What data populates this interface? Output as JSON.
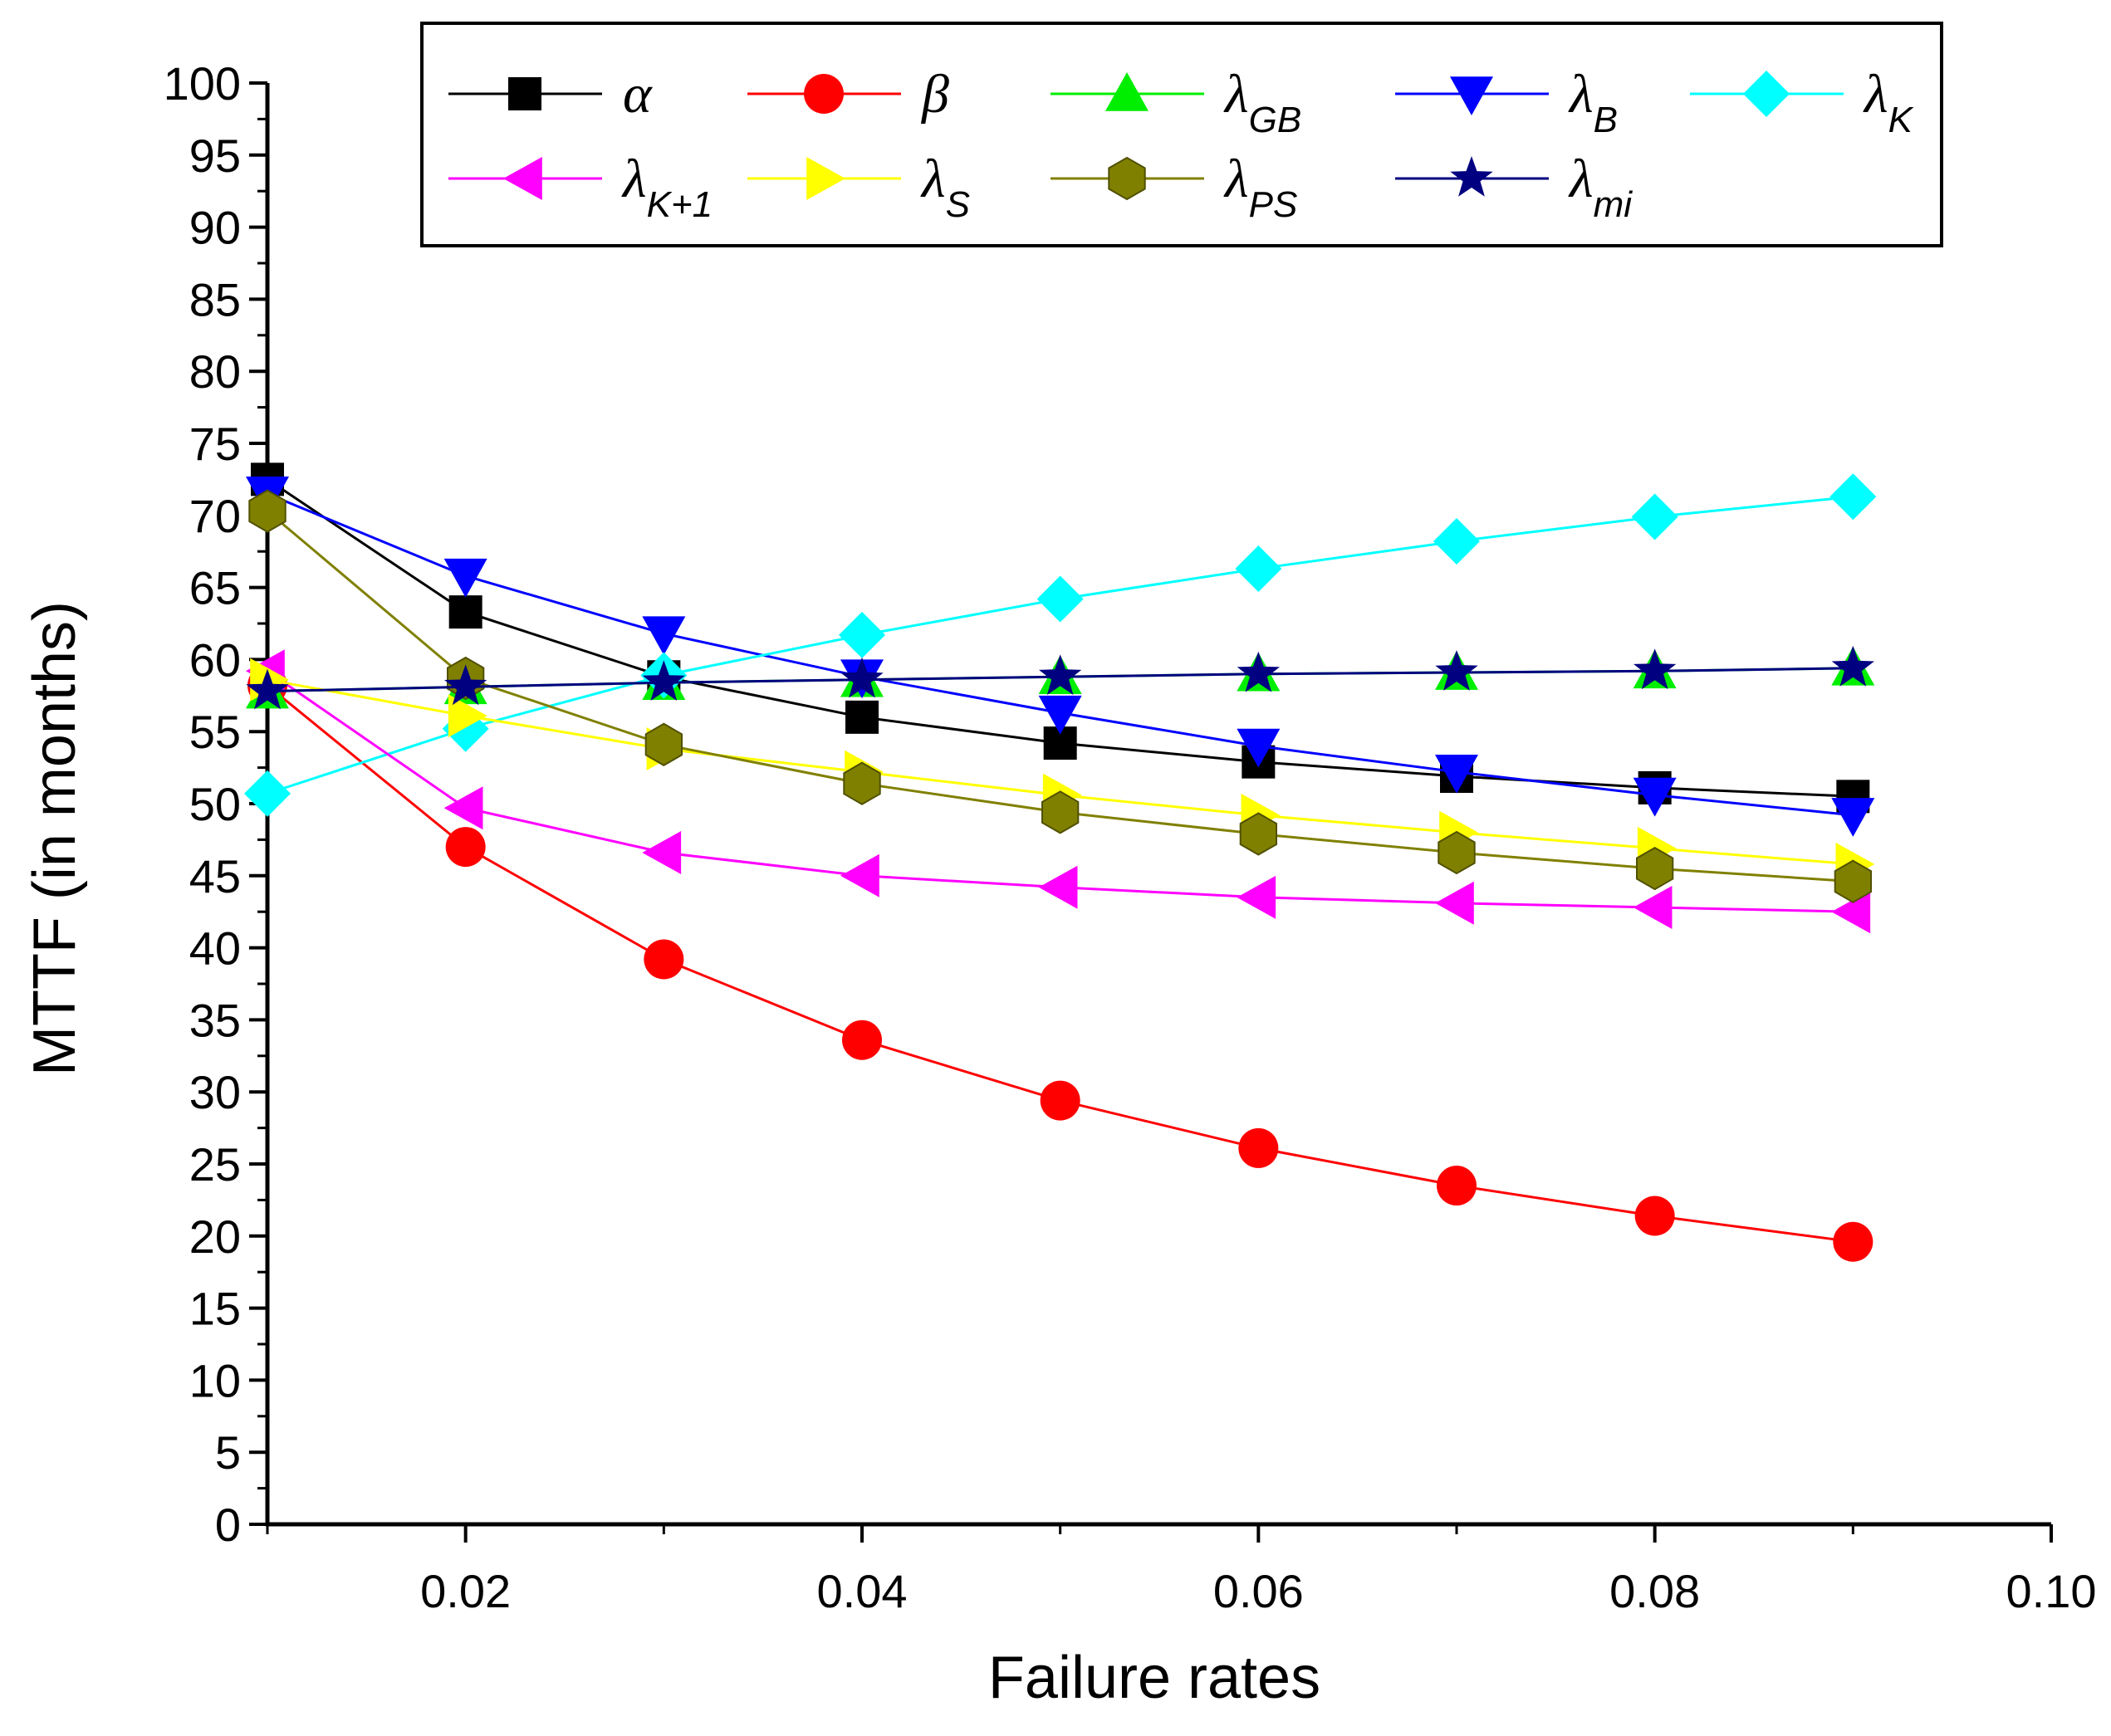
{
  "chart_data": {
    "type": "line",
    "title": "",
    "xlabel": "Failure rates",
    "ylabel": "MTTF (in months)",
    "xlim": [
      0.01,
      0.1
    ],
    "ylim": [
      0,
      100
    ],
    "x": [
      0.01,
      0.02,
      0.03,
      0.04,
      0.05,
      0.06,
      0.07,
      0.08,
      0.09
    ],
    "x_ticks": [
      "0.02",
      "0.04",
      "0.06",
      "0.08",
      "0.10"
    ],
    "y_ticks": [
      "0",
      "5",
      "10",
      "15",
      "20",
      "25",
      "30",
      "35",
      "40",
      "45",
      "50",
      "55",
      "60",
      "65",
      "70",
      "75",
      "80",
      "85",
      "90",
      "95",
      "100"
    ],
    "grid": false,
    "legend_position": "top",
    "series": [
      {
        "name": "α",
        "symbol": "α",
        "sub": "",
        "color": "#000000",
        "marker": "square",
        "values": [
          72.5,
          63.3,
          58.8,
          56.0,
          54.2,
          52.9,
          51.9,
          51.1,
          50.5
        ]
      },
      {
        "name": "β",
        "symbol": "β",
        "sub": "",
        "color": "#ff0000",
        "marker": "circle",
        "values": [
          58.2,
          47.0,
          39.2,
          33.6,
          29.4,
          26.1,
          23.5,
          21.4,
          19.6
        ]
      },
      {
        "name": "λGB",
        "symbol": "λ",
        "sub": "GB",
        "color": "#00ee00",
        "marker": "triangle-up",
        "values": [
          57.8,
          58.1,
          58.4,
          58.6,
          58.8,
          59.0,
          59.1,
          59.2,
          59.4
        ]
      },
      {
        "name": "λB",
        "symbol": "λ",
        "sub": "B",
        "color": "#0000ff",
        "marker": "triangle-down",
        "values": [
          71.5,
          65.8,
          61.8,
          58.8,
          56.3,
          54.0,
          52.2,
          50.6,
          49.2
        ]
      },
      {
        "name": "λK",
        "symbol": "λ",
        "sub": "K",
        "color": "#00ffff",
        "marker": "diamond",
        "values": [
          50.7,
          55.2,
          58.9,
          61.7,
          64.2,
          66.3,
          68.2,
          69.9,
          71.3
        ]
      },
      {
        "name": "λK+1",
        "symbol": "λ",
        "sub": "K+1",
        "color": "#ff00ff",
        "marker": "triangle-left",
        "values": [
          59.2,
          49.7,
          46.6,
          45.0,
          44.2,
          43.5,
          43.1,
          42.8,
          42.5
        ]
      },
      {
        "name": "λS",
        "symbol": "λ",
        "sub": "S",
        "color": "#ffff00",
        "marker": "triangle-right",
        "values": [
          58.6,
          56.1,
          53.8,
          52.2,
          50.6,
          49.2,
          48.0,
          46.9,
          45.8
        ]
      },
      {
        "name": "λPS",
        "symbol": "λ",
        "sub": "PS",
        "color": "#808000",
        "marker": "hexagon",
        "values": [
          70.3,
          58.7,
          54.1,
          51.4,
          49.4,
          47.9,
          46.6,
          45.5,
          44.6
        ]
      },
      {
        "name": "λmi",
        "symbol": "λ",
        "sub": "mi",
        "color": "#000080",
        "marker": "star",
        "values": [
          57.8,
          58.1,
          58.4,
          58.6,
          58.8,
          59.0,
          59.1,
          59.2,
          59.4
        ]
      }
    ]
  }
}
